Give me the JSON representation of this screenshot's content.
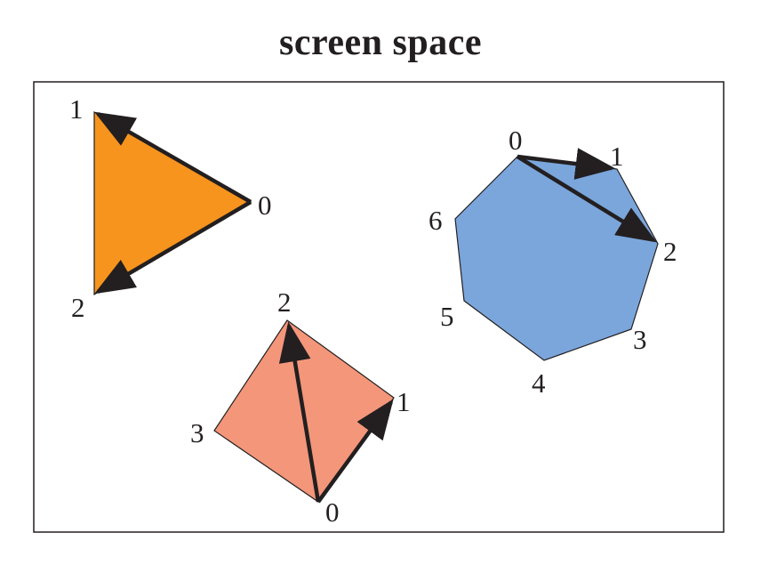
{
  "title": "screen space",
  "colors": {
    "triangle": "#f7941d",
    "quad": "#f4967a",
    "heptagon": "#7ba6dc",
    "outline": "#231f20"
  },
  "triangle": {
    "labels": [
      "0",
      "1",
      "2"
    ]
  },
  "quad": {
    "labels": [
      "0",
      "1",
      "2",
      "3"
    ]
  },
  "heptagon": {
    "labels": [
      "0",
      "1",
      "2",
      "3",
      "4",
      "5",
      "6"
    ]
  }
}
